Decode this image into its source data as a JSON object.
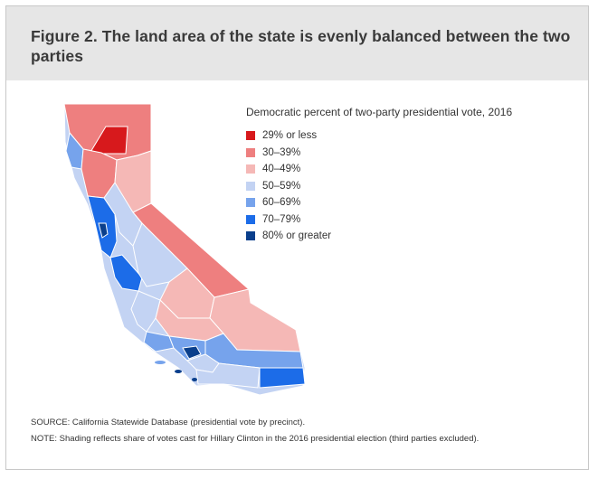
{
  "title": "Figure 2. The land area of the state is evenly balanced between the two parties",
  "legend": {
    "title": "Democratic percent of two-party presidential vote, 2016",
    "items": [
      {
        "label": "29% or less",
        "color": "#d7191c"
      },
      {
        "label": "30–39%",
        "color": "#ee7f7f"
      },
      {
        "label": "40–49%",
        "color": "#f5b8b6"
      },
      {
        "label": "50–59%",
        "color": "#c3d3f3"
      },
      {
        "label": "60–69%",
        "color": "#76a3ec"
      },
      {
        "label": "70–79%",
        "color": "#1c6ce8"
      },
      {
        "label": "80% or greater",
        "color": "#0a3f8c"
      }
    ]
  },
  "notes": {
    "source": "SOURCE: California Statewide Database (presidential vote by precinct).",
    "note": "NOTE: Shading reflects share of votes cast for Hillary Clinton in the 2016 presidential election (third parties excluded)."
  }
}
